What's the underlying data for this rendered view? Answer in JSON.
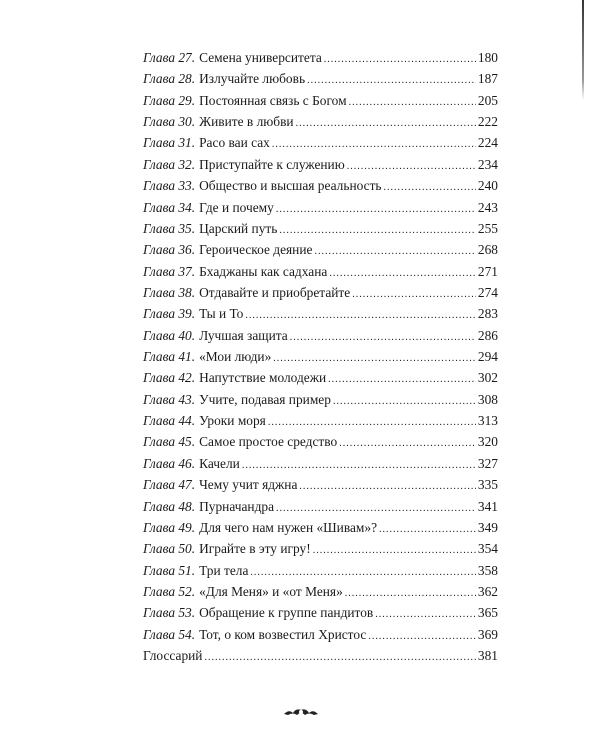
{
  "entries": [
    {
      "label": "Глава 27.",
      "title": "Семена университета",
      "page": "180"
    },
    {
      "label": "Глава 28.",
      "title": "Излучайте любовь",
      "page": "187"
    },
    {
      "label": "Глава 29.",
      "title": "Постоянная связь с Богом",
      "page": "205"
    },
    {
      "label": "Глава 30.",
      "title": "Живите в любви",
      "page": "222"
    },
    {
      "label": "Глава 31.",
      "title": "Расо ваи сах",
      "page": "224"
    },
    {
      "label": "Глава 32.",
      "title": "Приступайте к служению",
      "page": "234"
    },
    {
      "label": "Глава 33.",
      "title": "Общество и высшая реальность",
      "page": "240"
    },
    {
      "label": "Глава 34.",
      "title": "Где и почему",
      "page": "243"
    },
    {
      "label": "Глава 35.",
      "title": "Царский путь",
      "page": "255"
    },
    {
      "label": "Глава 36.",
      "title": "Героическое деяние",
      "page": "268"
    },
    {
      "label": "Глава 37.",
      "title": "Бхаджаны как садхана",
      "page": "271"
    },
    {
      "label": "Глава 38.",
      "title": "Отдавайте и приобретайте",
      "page": "274"
    },
    {
      "label": "Глава 39.",
      "title": "Ты и То",
      "page": "283"
    },
    {
      "label": "Глава 40.",
      "title": "Лучшая защита",
      "page": "286"
    },
    {
      "label": "Глава 41.",
      "title": "«Мои люди»",
      "page": "294"
    },
    {
      "label": "Глава 42.",
      "title": "Напутствие молодежи",
      "page": "302"
    },
    {
      "label": "Глава 43.",
      "title": "Учите, подавая пример",
      "page": "308"
    },
    {
      "label": "Глава 44.",
      "title": "Уроки моря",
      "page": "313"
    },
    {
      "label": "Глава 45.",
      "title": "Самое простое средство",
      "page": "320"
    },
    {
      "label": "Глава 46.",
      "title": "Качели",
      "page": "327"
    },
    {
      "label": "Глава 47.",
      "title": "Чему учит яджна",
      "page": "335"
    },
    {
      "label": "Глава 48.",
      "title": "Пурначандра",
      "page": "341"
    },
    {
      "label": "Глава 49.",
      "title": "Для чего нам нужен «Шивам»?",
      "page": "349"
    },
    {
      "label": "Глава 50.",
      "title": "Играйте в эту игру!",
      "page": "354"
    },
    {
      "label": "Глава 51.",
      "title": "Три тела",
      "page": "358"
    },
    {
      "label": "Глава 52.",
      "title": "«Для Меня» и «от Меня»",
      "page": "362"
    },
    {
      "label": "Глава 53.",
      "title": "Обращение к группе пандитов",
      "page": "365"
    },
    {
      "label": "Глава 54.",
      "title": "Тот, о ком возвестил Христос",
      "page": "369"
    },
    {
      "label": "",
      "title": "Глоссарий",
      "page": "381"
    }
  ],
  "ornament_icon": "decorative-flourish",
  "text_color": "#1a1a1a"
}
